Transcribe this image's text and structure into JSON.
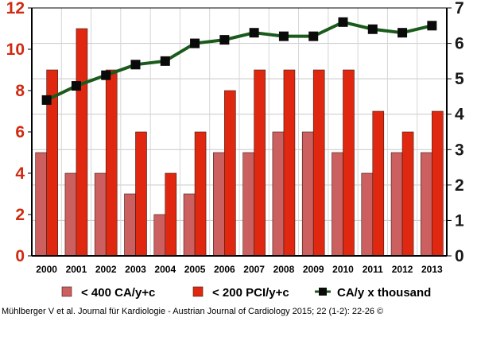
{
  "chart_data": {
    "type": "bar",
    "categories": [
      "2000",
      "2001",
      "2002",
      "2003",
      "2004",
      "2005",
      "2006",
      "2007",
      "2008",
      "2009",
      "2010",
      "2011",
      "2012",
      "2013"
    ],
    "series": [
      {
        "name": "< 400 CA/y+c",
        "type": "bar",
        "axis": "left",
        "color": "#cc6060",
        "values": [
          5,
          4,
          4,
          3,
          2,
          3,
          5,
          5,
          6,
          6,
          5,
          4,
          5,
          5
        ]
      },
      {
        "name": "< 200 PCI/y+c",
        "type": "bar",
        "axis": "left",
        "color": "#e02810",
        "values": [
          9,
          11,
          9,
          6,
          4,
          6,
          8,
          9,
          9,
          9,
          9,
          7,
          6,
          7
        ]
      },
      {
        "name": "CA/y x thousand",
        "type": "line",
        "axis": "right",
        "color": "#1a5a1a",
        "values": [
          4.4,
          4.8,
          5.1,
          5.4,
          5.5,
          6.0,
          6.1,
          6.3,
          6.2,
          6.2,
          6.6,
          6.4,
          6.3,
          6.5
        ]
      }
    ],
    "y_left": {
      "ylim": [
        0,
        12
      ],
      "ticks": [
        "0",
        "2",
        "4",
        "6",
        "8",
        "10",
        "12"
      ],
      "color": "#d02a10"
    },
    "y_right": {
      "ylim": [
        0,
        7
      ],
      "ticks": [
        "0",
        "1",
        "2",
        "3",
        "4",
        "5",
        "6",
        "7"
      ],
      "color": "#1a1a1a"
    },
    "grid": true,
    "legend_position": "bottom"
  },
  "citation": "Mühlberger V et al. Journal für Kardiologie - Austrian Journal of Cardiology 2015; 22 (1-2): 22-26 ©"
}
